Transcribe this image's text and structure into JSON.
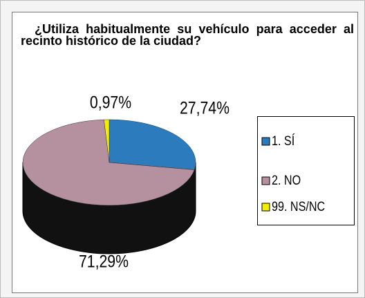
{
  "chart_data": {
    "type": "pie",
    "title": "¿Utiliza habitualmente su vehículo para acceder al recinto histórico de la ciudad?",
    "categories": [
      "1. SÍ",
      "2. NO",
      "99. NS/NC"
    ],
    "values": [
      27.74,
      71.29,
      0.97
    ],
    "value_labels": [
      "27,74%",
      "71,29%",
      "0,97%"
    ],
    "colors": [
      "#2b7bbd",
      "#b5909f",
      "#f2ee00"
    ],
    "legend": "right"
  }
}
